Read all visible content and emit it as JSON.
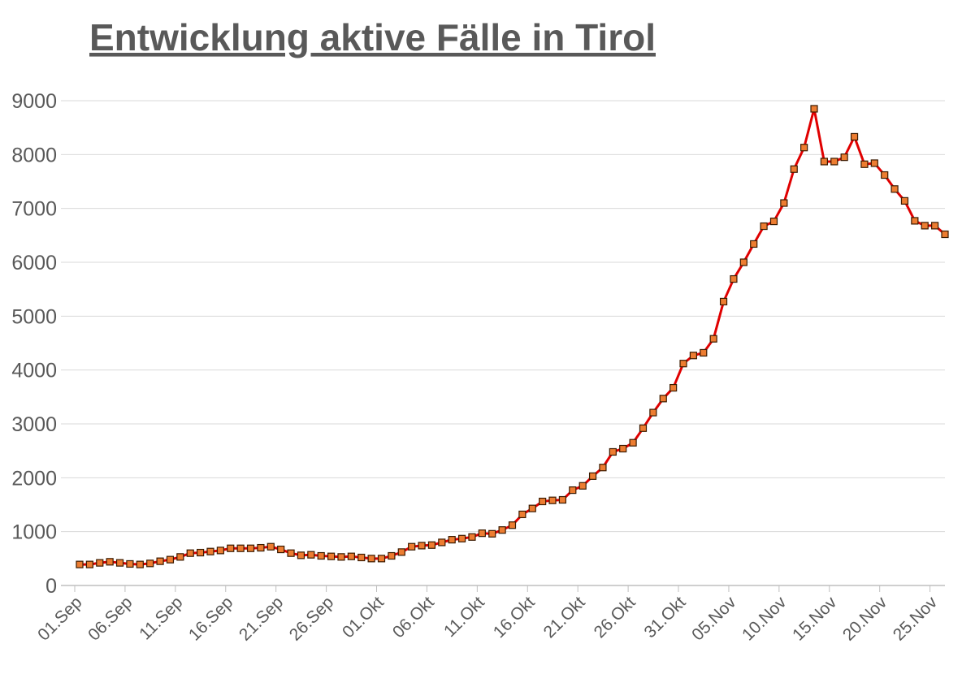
{
  "chart_data": {
    "type": "line",
    "title": "Entwicklung aktive Fälle in Tirol",
    "categories": [
      "01.Sep",
      null,
      null,
      null,
      null,
      "06.Sep",
      null,
      null,
      null,
      null,
      "11.Sep",
      null,
      null,
      null,
      null,
      "16.Sep",
      null,
      null,
      null,
      null,
      "21.Sep",
      null,
      null,
      null,
      null,
      "26.Sep",
      null,
      null,
      null,
      null,
      "01.Okt",
      null,
      null,
      null,
      null,
      "06.Okt",
      null,
      null,
      null,
      null,
      "11.Okt",
      null,
      null,
      null,
      null,
      "16.Okt",
      null,
      null,
      null,
      null,
      "21.Okt",
      null,
      null,
      null,
      null,
      "26.Okt",
      null,
      null,
      null,
      null,
      "31.Okt",
      null,
      null,
      null,
      null,
      "05.Nov",
      null,
      null,
      null,
      null,
      "10.Nov",
      null,
      null,
      null,
      null,
      "15.Nov",
      null,
      null,
      null,
      null,
      "20.Nov",
      null,
      null,
      null,
      null,
      "25.Nov",
      null
    ],
    "values": [
      390,
      390,
      420,
      440,
      420,
      400,
      390,
      410,
      450,
      480,
      530,
      600,
      610,
      630,
      650,
      690,
      690,
      690,
      700,
      720,
      670,
      600,
      560,
      570,
      550,
      540,
      530,
      540,
      520,
      500,
      500,
      550,
      620,
      720,
      740,
      750,
      800,
      850,
      870,
      900,
      970,
      960,
      1030,
      1120,
      1320,
      1430,
      1560,
      1580,
      1590,
      1770,
      1850,
      2030,
      2190,
      2480,
      2540,
      2650,
      2920,
      3210,
      3470,
      3670,
      4120,
      4270,
      4320,
      4580,
      5270,
      5690,
      6000,
      6340,
      6670,
      6760,
      7100,
      7730,
      8130,
      8850,
      7870,
      7870,
      7950,
      8330,
      7820,
      7840,
      7620,
      7360,
      7140,
      6770,
      6680,
      6680,
      6520
    ],
    "color": "#e00000",
    "marker_color": "#ed7d31",
    "ylim": [
      0,
      9000
    ],
    "yticks": [
      0,
      1000,
      2000,
      3000,
      4000,
      5000,
      6000,
      7000,
      8000,
      9000
    ],
    "grid": true
  }
}
